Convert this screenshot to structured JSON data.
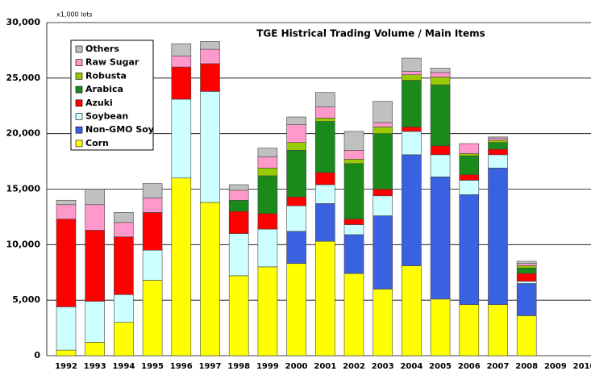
{
  "chart_data": {
    "type": "stacked_bar",
    "title": "TGE Histrical Trading Volume / Main Items",
    "y_unit": "x1,000 lots",
    "categories": [
      "1992",
      "1993",
      "1994",
      "1995",
      "1996",
      "1997",
      "1998",
      "1999",
      "2000",
      "2001",
      "2002",
      "2003",
      "2004",
      "2005",
      "2006",
      "2007",
      "2008",
      "2009",
      "2010"
    ],
    "series": [
      {
        "name": "Corn",
        "color": "#ffff00",
        "values": [
          500,
          1200,
          3000,
          6800,
          16000,
          13800,
          7200,
          8000,
          8300,
          10300,
          7400,
          6000,
          8100,
          5100,
          4600,
          4600,
          3600,
          null,
          null
        ]
      },
      {
        "name": "Non-GMO Soy",
        "color": "#3a62e0",
        "values": [
          0,
          0,
          0,
          0,
          0,
          0,
          0,
          0,
          2900,
          3400,
          3500,
          6600,
          10000,
          11000,
          9900,
          12300,
          2900,
          null,
          null
        ]
      },
      {
        "name": "Soybean",
        "color": "#ccffff",
        "values": [
          3900,
          3700,
          2500,
          2700,
          7100,
          10000,
          3800,
          3400,
          2300,
          1700,
          900,
          1800,
          2100,
          2000,
          1300,
          1200,
          200,
          null,
          null
        ]
      },
      {
        "name": "Azuki",
        "color": "#ff0000",
        "values": [
          7900,
          6400,
          5200,
          3400,
          2900,
          2500,
          2000,
          1400,
          800,
          1100,
          500,
          600,
          400,
          800,
          500,
          500,
          700,
          null,
          null
        ]
      },
      {
        "name": "Arabica",
        "color": "#1a8a1a",
        "values": [
          0,
          0,
          0,
          0,
          0,
          0,
          1000,
          3400,
          4200,
          4600,
          5000,
          5000,
          4200,
          5500,
          1700,
          600,
          500,
          null,
          null
        ]
      },
      {
        "name": "Robusta",
        "color": "#99cc00",
        "values": [
          0,
          0,
          0,
          0,
          0,
          0,
          0,
          700,
          700,
          300,
          400,
          600,
          500,
          700,
          200,
          200,
          200,
          null,
          null
        ]
      },
      {
        "name": "Raw Sugar",
        "color": "#ff99cc",
        "values": [
          1300,
          2300,
          1300,
          1300,
          1000,
          1300,
          900,
          1000,
          1600,
          1000,
          800,
          400,
          300,
          400,
          900,
          200,
          200,
          null,
          null
        ]
      },
      {
        "name": "Others",
        "color": "#c0c0c0",
        "values": [
          400,
          1400,
          900,
          1300,
          1100,
          700,
          500,
          800,
          700,
          1300,
          1700,
          1900,
          1200,
          400,
          0,
          100,
          200,
          null,
          null
        ]
      }
    ],
    "ylim": [
      0,
      30000
    ],
    "yticks": [
      0,
      {
        "value": 5000,
        "label": "5,000"
      },
      {
        "value": 10000,
        "label": "10,000"
      },
      {
        "value": 15000,
        "label": "15,000"
      },
      {
        "value": 20000,
        "label": "20,000"
      },
      {
        "value": 25000,
        "label": "25,000"
      },
      {
        "value": 30000,
        "label": "30,000"
      }
    ],
    "grid": true,
    "legend": "upper-left"
  }
}
